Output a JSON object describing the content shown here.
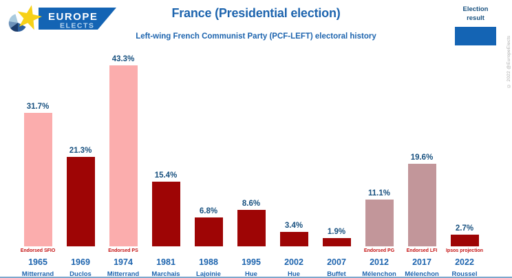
{
  "header": {
    "logo": {
      "line1": "EUROPE",
      "line2": "ELECTS"
    },
    "title": "France (Presidential election)",
    "subtitle": "Left-wing French Communist Party (PCF-LEFT) electoral history",
    "legend": {
      "label": "Election\nresult",
      "swatch_color": "#1464b4"
    },
    "copyright": "© 2022 @EuropeElects"
  },
  "colors": {
    "title_blue": "#1d64ae",
    "value_navy": "#17507f",
    "endorsed_red": "#c41111",
    "bar_dark_red": "#9e0505",
    "bar_pink": "#fbadad",
    "bar_mauve": "#c2969a",
    "legend_blue": "#1464b4",
    "logo_banner_blue": "#1464b4",
    "logo_star_yellow": "#f7d117"
  },
  "chart_data": {
    "type": "bar",
    "title": "France (Presidential election)",
    "subtitle": "Left-wing French Communist Party (PCF-LEFT) electoral history",
    "xlabel": "",
    "ylabel": "",
    "unit": "%",
    "ylim": [
      0,
      45
    ],
    "grid": false,
    "legend": {
      "position": "top-right",
      "label": "Election result",
      "swatch_color": "#1464b4"
    },
    "categories": [
      "1965",
      "1969",
      "1974",
      "1981",
      "1988",
      "1995",
      "2002",
      "2007",
      "2012",
      "2017",
      "2022"
    ],
    "values": [
      31.7,
      21.3,
      43.3,
      15.4,
      6.8,
      8.6,
      3.4,
      1.9,
      11.1,
      19.6,
      2.7
    ],
    "bars": [
      {
        "year": "1965",
        "candidate": "Mitterrand",
        "value": 31.7,
        "label": "31.7%",
        "note": "Endorsed SFIO",
        "color": "#fbadad"
      },
      {
        "year": "1969",
        "candidate": "Duclos",
        "value": 21.3,
        "label": "21.3%",
        "note": "",
        "color": "#9e0505"
      },
      {
        "year": "1974",
        "candidate": "Mitterrand",
        "value": 43.3,
        "label": "43.3%",
        "note": "Endorsed PS",
        "color": "#fbadad"
      },
      {
        "year": "1981",
        "candidate": "Marchais",
        "value": 15.4,
        "label": "15.4%",
        "note": "",
        "color": "#9e0505"
      },
      {
        "year": "1988",
        "candidate": "Lajoinie",
        "value": 6.8,
        "label": "6.8%",
        "note": "",
        "color": "#9e0505"
      },
      {
        "year": "1995",
        "candidate": "Hue",
        "value": 8.6,
        "label": "8.6%",
        "note": "",
        "color": "#9e0505"
      },
      {
        "year": "2002",
        "candidate": "Hue",
        "value": 3.4,
        "label": "3.4%",
        "note": "",
        "color": "#9e0505"
      },
      {
        "year": "2007",
        "candidate": "Buffet",
        "value": 1.9,
        "label": "1.9%",
        "note": "",
        "color": "#9e0505"
      },
      {
        "year": "2012",
        "candidate": "Mélenchon",
        "value": 11.1,
        "label": "11.1%",
        "note": "Endorsed PG",
        "color": "#c2969a"
      },
      {
        "year": "2017",
        "candidate": "Mélenchon",
        "value": 19.6,
        "label": "19.6%",
        "note": "Endorsed LFI",
        "color": "#c2969a"
      },
      {
        "year": "2022",
        "candidate": "Roussel",
        "value": 2.7,
        "label": "2.7%",
        "note": "Ipsos projection",
        "color": "#9e0505"
      }
    ]
  }
}
